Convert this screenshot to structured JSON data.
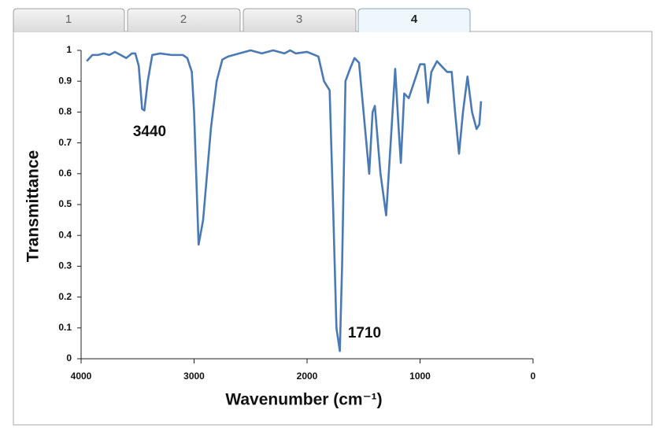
{
  "tabs": [
    "1",
    "2",
    "3",
    "4"
  ],
  "chart_data": {
    "type": "line",
    "x_label": "Wavenumber (cm⁻¹)",
    "y_label": "Transmittance",
    "xlim": [
      4000,
      0
    ],
    "xticks": [
      4000,
      3000,
      2000,
      1000,
      0
    ],
    "ylim": [
      0,
      1
    ],
    "yticks": [
      0,
      0.1,
      0.2,
      0.3,
      0.4,
      0.5,
      0.6,
      0.7,
      0.8,
      0.9,
      1
    ],
    "grid": false,
    "annotations": [
      "3440",
      "1710"
    ],
    "x": [
      3950,
      3900,
      3850,
      3800,
      3750,
      3700,
      3650,
      3600,
      3550,
      3520,
      3490,
      3460,
      3440,
      3410,
      3370,
      3300,
      3200,
      3100,
      3060,
      3020,
      3000,
      2960,
      2920,
      2850,
      2800,
      2750,
      2700,
      2600,
      2500,
      2400,
      2300,
      2200,
      2150,
      2100,
      2000,
      1900,
      1850,
      1800,
      1770,
      1740,
      1710,
      1690,
      1660,
      1620,
      1580,
      1540,
      1500,
      1450,
      1420,
      1400,
      1350,
      1300,
      1260,
      1220,
      1190,
      1170,
      1140,
      1100,
      1050,
      1000,
      960,
      930,
      900,
      850,
      800,
      760,
      720,
      690,
      655,
      620,
      580,
      540,
      500,
      475,
      460
    ],
    "series": [
      {
        "name": "Transmittance",
        "color": "#4a7ab5",
        "values": [
          0.965,
          0.985,
          0.985,
          0.99,
          0.985,
          0.995,
          0.985,
          0.975,
          0.99,
          0.99,
          0.95,
          0.81,
          0.805,
          0.9,
          0.985,
          0.99,
          0.985,
          0.985,
          0.975,
          0.93,
          0.8,
          0.37,
          0.45,
          0.75,
          0.9,
          0.97,
          0.98,
          0.99,
          1.0,
          0.99,
          1.0,
          0.99,
          1.0,
          0.99,
          0.995,
          0.98,
          0.9,
          0.87,
          0.5,
          0.1,
          0.025,
          0.3,
          0.9,
          0.94,
          0.975,
          0.96,
          0.8,
          0.6,
          0.8,
          0.82,
          0.6,
          0.465,
          0.7,
          0.94,
          0.75,
          0.635,
          0.86,
          0.845,
          0.9,
          0.955,
          0.955,
          0.83,
          0.93,
          0.965,
          0.945,
          0.93,
          0.93,
          0.8,
          0.665,
          0.8,
          0.915,
          0.8,
          0.745,
          0.76,
          0.835
        ]
      }
    ]
  }
}
